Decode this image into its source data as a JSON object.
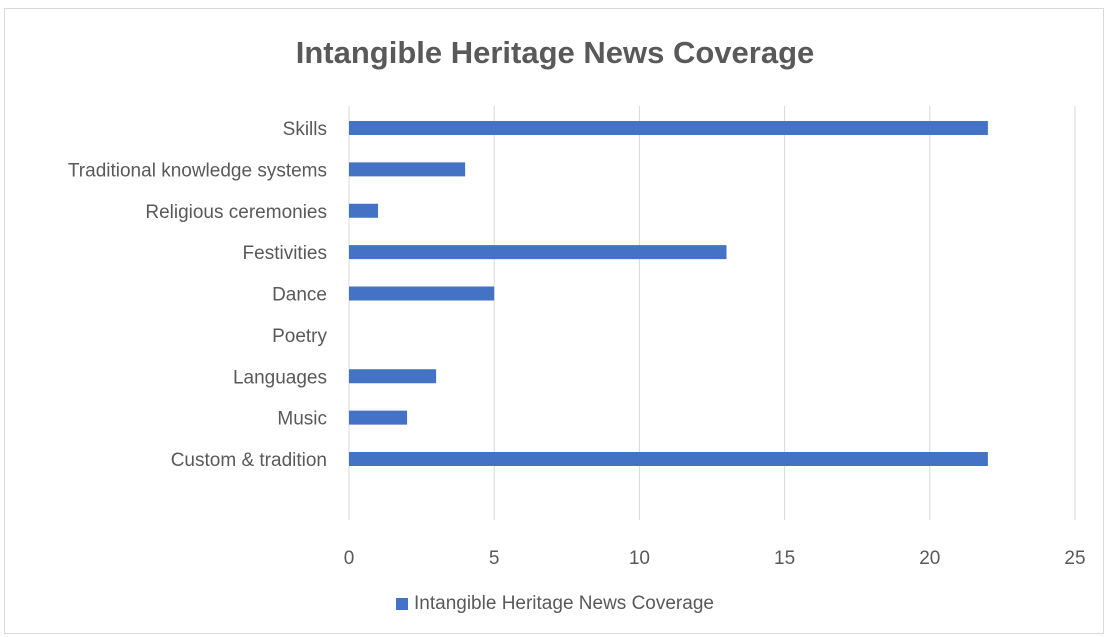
{
  "chart_data": {
    "type": "bar",
    "orientation": "horizontal",
    "title": "Intangible Heritage News Coverage",
    "categories": [
      "Custom & tradition",
      "Music",
      "Languages",
      "Poetry",
      "Dance",
      "Festivities",
      "Religious ceremonies",
      "Traditional knowledge systems",
      "Skills"
    ],
    "series": [
      {
        "name": "Intangible Heritage News Coverage",
        "values": [
          22,
          2,
          3,
          0,
          5,
          13,
          1,
          4,
          22
        ]
      }
    ],
    "xlim": [
      0,
      25
    ],
    "x_ticks": [
      "0",
      "5",
      "10",
      "15",
      "20",
      "25"
    ],
    "grid": "vertical",
    "legend_position": "bottom",
    "bar_color": "#4472c4"
  }
}
